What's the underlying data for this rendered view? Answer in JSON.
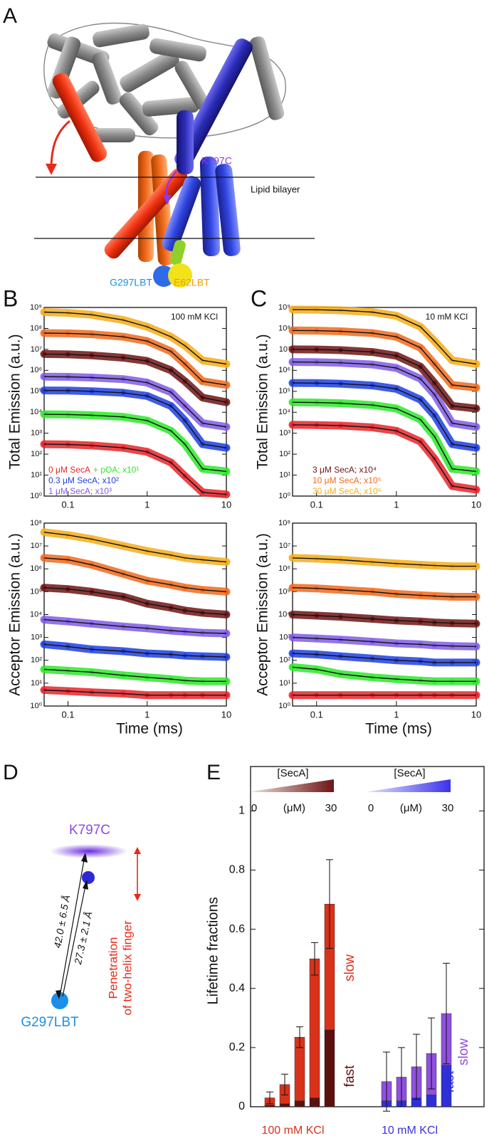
{
  "figure": {
    "panel_a": {
      "label": "A",
      "k797c": "K797C",
      "bilayer": "Lipid bilayer",
      "g297": "G297LBT",
      "e62": "E62LBT"
    },
    "panel_d": {
      "label": "D",
      "top": "K797C",
      "bottom": "G297LBT",
      "distance_long": "42.0 ± 6.5 Å",
      "distance_short": "27.3 ± 2.1 Å",
      "note": [
        "Penetration",
        "of two-helix finger"
      ]
    }
  },
  "chart_data": [
    {
      "type": "line",
      "label": "B",
      "annotation": "100 mM KCl",
      "ylabel": "Total Emission (a.u.)",
      "log_x": true,
      "log_y": true,
      "x": [
        0.05,
        0.1,
        0.2,
        0.5,
        1,
        2,
        3,
        5,
        10
      ],
      "xlim": [
        0.05,
        10
      ],
      "xticks": [
        0.1,
        1,
        10
      ],
      "ylim": [
        1,
        1000000000
      ],
      "yticks": [
        {
          "value": 1,
          "label": "10⁰"
        },
        {
          "value": 10,
          "label": "10¹"
        },
        {
          "value": 100,
          "label": "10²"
        },
        {
          "value": 1000,
          "label": "10³"
        },
        {
          "value": 10000,
          "label": "10⁴"
        },
        {
          "value": 100000,
          "label": "10⁵"
        },
        {
          "value": 1000000,
          "label": "10⁶"
        },
        {
          "value": 10000000,
          "label": "10⁷"
        },
        {
          "value": 100000000,
          "label": "10⁸"
        },
        {
          "value": 1000000000,
          "label": "10⁹"
        }
      ],
      "series": [
        {
          "name": "0 μM SecA",
          "color": "#e8242a",
          "values": [
            300,
            290,
            260,
            200,
            130,
            40,
            9,
            1.5,
            1.2
          ]
        },
        {
          "name": "+ pOA; x10¹",
          "color": "#2ee82a",
          "values": [
            8000,
            7800,
            7200,
            6000,
            4000,
            1300,
            300,
            20,
            15
          ]
        },
        {
          "name": "0.3 μM SecA;  x10²",
          "color": "#1f3fe0",
          "values": [
            110000,
            108000,
            100000,
            85000,
            60000,
            20000,
            4000,
            300,
            200
          ]
        },
        {
          "name": "1 μM SecA;  x10³",
          "color": "#7f5ce6",
          "values": [
            500000,
            490000,
            450000,
            380000,
            260000,
            90000,
            20000,
            3000,
            2000
          ]
        },
        {
          "color": "#6e1414",
          "values": [
            6000000,
            5800000,
            5200000,
            4000000,
            2800000,
            1000000,
            300000,
            50000,
            30000
          ]
        },
        {
          "color": "#f06a1c",
          "values": [
            60000000,
            58000000,
            53000000,
            40000000,
            25000000,
            8000000,
            2000000,
            300000,
            200000
          ]
        },
        {
          "color": "#f5ad1a",
          "values": [
            600000000,
            550000000,
            450000000,
            250000000,
            120000000,
            40000000,
            15000000,
            3000000,
            2000000
          ]
        }
      ]
    },
    {
      "type": "line",
      "ylabel": "Acceptor Emission (a.u.)",
      "xlabel": "Time (ms)",
      "log_x": true,
      "log_y": true,
      "x": [
        0.05,
        0.1,
        0.2,
        0.5,
        1,
        2,
        3,
        5,
        10
      ],
      "xlim": [
        0.05,
        10
      ],
      "xticks": [
        0.1,
        1,
        10
      ],
      "ylim": [
        1,
        100000000
      ],
      "yticks": [
        {
          "value": 1,
          "label": "10⁰"
        },
        {
          "value": 10,
          "label": "10¹"
        },
        {
          "value": 100,
          "label": "10²"
        },
        {
          "value": 1000,
          "label": "10³"
        },
        {
          "value": 10000,
          "label": "10⁴"
        },
        {
          "value": 100000,
          "label": "10⁵"
        },
        {
          "value": 1000000,
          "label": "10⁶"
        },
        {
          "value": 10000000,
          "label": "10⁷"
        },
        {
          "value": 100000000,
          "label": "10⁸"
        }
      ],
      "series": [
        {
          "color": "#e8242a",
          "values": [
            5,
            4.5,
            4,
            3.5,
            3,
            3,
            3,
            3,
            3
          ]
        },
        {
          "color": "#2ee82a",
          "values": [
            40,
            35,
            30,
            22,
            18,
            15,
            13,
            12,
            12
          ]
        },
        {
          "color": "#1f3fe0",
          "values": [
            500,
            400,
            300,
            250,
            200,
            180,
            160,
            150,
            140
          ]
        },
        {
          "color": "#7f5ce6",
          "values": [
            6000,
            5000,
            4000,
            3000,
            2500,
            2000,
            1800,
            1600,
            1500
          ]
        },
        {
          "color": "#6e1414",
          "values": [
            150000,
            130000,
            100000,
            60000,
            30000,
            20000,
            15000,
            12000,
            10000
          ]
        },
        {
          "color": "#f06a1c",
          "values": [
            3000000,
            2500000,
            1500000,
            600000,
            300000,
            200000,
            150000,
            120000,
            100000
          ]
        },
        {
          "color": "#f5ad1a",
          "values": [
            40000000,
            30000000,
            20000000,
            10000000,
            6000000,
            4000000,
            3000000,
            2500000,
            2000000
          ]
        }
      ]
    },
    {
      "type": "line",
      "label": "C",
      "annotation": "10 mM KCl",
      "ylabel": "Total Emission (a.u.)",
      "log_x": true,
      "log_y": true,
      "x": [
        0.05,
        0.1,
        0.2,
        0.5,
        1,
        2,
        3,
        5,
        10
      ],
      "xlim": [
        0.05,
        10
      ],
      "xticks": [
        0.1,
        1,
        10
      ],
      "ylim": [
        1,
        1000000000
      ],
      "yticks": [
        {
          "value": 1,
          "label": "10⁰"
        },
        {
          "value": 10,
          "label": "10¹"
        },
        {
          "value": 100,
          "label": "10²"
        },
        {
          "value": 1000,
          "label": "10³"
        },
        {
          "value": 10000,
          "label": "10⁴"
        },
        {
          "value": 100000,
          "label": "10⁵"
        },
        {
          "value": 1000000,
          "label": "10⁶"
        },
        {
          "value": 10000000,
          "label": "10⁷"
        },
        {
          "value": 100000000,
          "label": "10⁸"
        },
        {
          "value": 1000000000,
          "label": "10⁹"
        }
      ],
      "series": [
        {
          "color": "#e8242a",
          "values": [
            2500,
            2450,
            2300,
            1900,
            1300,
            400,
            60,
            3,
            2
          ]
        },
        {
          "color": "#2ee82a",
          "values": [
            30000,
            29000,
            27000,
            22000,
            15000,
            4500,
            700,
            20,
            15
          ]
        },
        {
          "color": "#1f3fe0",
          "values": [
            250000,
            245000,
            230000,
            190000,
            130000,
            40000,
            7000,
            300,
            200
          ]
        },
        {
          "color": "#7f5ce6",
          "values": [
            2500000,
            2450000,
            2300000,
            1900000,
            1300000,
            400000,
            70000,
            3000,
            2000
          ]
        },
        {
          "name": "3 μM SecA;  x10⁴",
          "color": "#6e1414",
          "values": [
            10000000,
            9800000,
            9200000,
            7500000,
            5000000,
            1500000,
            250000,
            20000,
            15000
          ]
        },
        {
          "name": "10 μM SecA;  x10⁵",
          "color": "#f06a1c",
          "values": [
            80000000,
            78000000,
            73000000,
            60000000,
            40000000,
            12000000,
            2000000,
            200000,
            150000
          ]
        },
        {
          "name": "30 μM SecA;  x10⁶",
          "color": "#f5ad1a",
          "values": [
            800000000,
            780000000,
            730000000,
            600000000,
            400000000,
            120000000,
            25000000,
            3000000,
            2000000
          ]
        }
      ]
    },
    {
      "type": "line",
      "ylabel": "Acceptor Emission (a.u.)",
      "xlabel": "Time (ms)",
      "log_x": true,
      "log_y": true,
      "x": [
        0.05,
        0.1,
        0.2,
        0.5,
        1,
        2,
        3,
        5,
        10
      ],
      "xlim": [
        0.05,
        10
      ],
      "xticks": [
        0.1,
        1,
        10
      ],
      "ylim": [
        1,
        100000000
      ],
      "yticks": [
        {
          "value": 1,
          "label": "10⁰"
        },
        {
          "value": 10,
          "label": "10¹"
        },
        {
          "value": 100,
          "label": "10²"
        },
        {
          "value": 1000,
          "label": "10³"
        },
        {
          "value": 10000,
          "label": "10⁴"
        },
        {
          "value": 100000,
          "label": "10⁵"
        },
        {
          "value": 1000000,
          "label": "10⁶"
        },
        {
          "value": 10000000,
          "label": "10⁷"
        },
        {
          "value": 100000000,
          "label": "10⁸"
        }
      ],
      "series": [
        {
          "color": "#e8242a",
          "values": [
            3,
            3,
            3,
            3,
            3,
            3,
            3,
            3,
            3
          ]
        },
        {
          "color": "#2ee82a",
          "values": [
            50,
            40,
            25,
            18,
            15,
            13,
            12,
            12,
            12
          ]
        },
        {
          "color": "#1f3fe0",
          "values": [
            200,
            180,
            150,
            120,
            100,
            90,
            80,
            80,
            80
          ]
        },
        {
          "color": "#7f5ce6",
          "values": [
            1000,
            900,
            800,
            650,
            550,
            500,
            450,
            420,
            400
          ]
        },
        {
          "color": "#6e1414",
          "values": [
            10000,
            9000,
            8000,
            6500,
            5500,
            5000,
            4500,
            4200,
            4000
          ]
        },
        {
          "color": "#f06a1c",
          "values": [
            150000,
            140000,
            120000,
            100000,
            80000,
            70000,
            65000,
            60000,
            60000
          ]
        },
        {
          "color": "#f5ad1a",
          "values": [
            3000000,
            2800000,
            2500000,
            2000000,
            1700000,
            1500000,
            1400000,
            1300000,
            1300000
          ]
        }
      ]
    },
    {
      "type": "stacked_bar",
      "label": "E",
      "ylabel": "Lifetime fractions",
      "categories": [
        null,
        null,
        null,
        null,
        null,
        null,
        null,
        null,
        null,
        null,
        null,
        null
      ],
      "groups": [
        "100 mM KCl",
        "10 mM KCl"
      ],
      "group_colors": [
        "#d9321a",
        "#3b32de"
      ],
      "ylim": [
        0,
        1.15
      ],
      "yticks": [
        0,
        0.2,
        0.4,
        0.6,
        0.8,
        1
      ],
      "legend": {
        "title": "[SecA]",
        "min": 0,
        "unit": "(μM)",
        "max": 30,
        "colors": [
          "#6e1414",
          "#3b32e8"
        ]
      },
      "series": [
        {
          "name": "fast",
          "colors": [
            "#5c1010",
            "#2f2fd8"
          ],
          "values": [
            0,
            0.005,
            0.01,
            0.02,
            0.03,
            0.26,
            0,
            0.02,
            0.02,
            0.03,
            0.04,
            0.14
          ]
        },
        {
          "name": "slow",
          "colors": [
            "#d9321a",
            "#9050e0"
          ],
          "values": [
            0,
            0.025,
            0.065,
            0.215,
            0.47,
            0.425,
            0,
            0.065,
            0.08,
            0.105,
            0.14,
            0.175
          ],
          "errors": [
            0,
            0.02,
            0.035,
            0.035,
            0.055,
            0.15,
            0,
            0.1,
            0.1,
            0.11,
            0.12,
            0.17
          ]
        }
      ]
    }
  ]
}
